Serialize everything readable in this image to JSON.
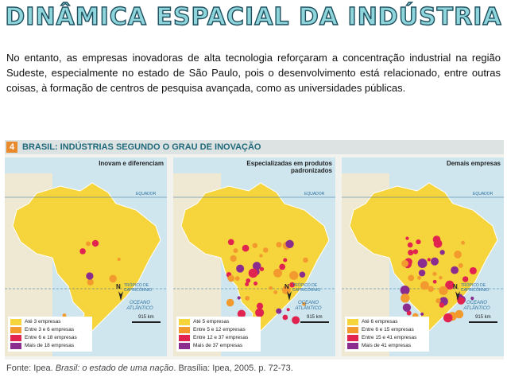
{
  "title": "DINÂMICA ESPACIAL DA INDÚSTRIA",
  "paragraph": "No entanto, as empresas inovadoras de alta tecnologia reforçaram a concentração industrial na região Sudeste, especialmente no estado de São Paulo, pois o desenvolvimento está relacionado, entre outras coisas, à formação de centros de pesquisa avançada, como as universidades públicas.",
  "figure": {
    "number": "4",
    "title": "BRASIL: INDÚSTRIAS SEGUNDO O GRAU DE INOVAÇÃO",
    "equator": "EQUADOR",
    "tropic": "TRÓPICO DE CAPRICÓRNIO",
    "ocean": "OCEANO ATLÂNTICO",
    "north": "N",
    "scale": "915 km",
    "maps": [
      {
        "title": "Inovam e diferenciam",
        "legend": [
          "Até 3 empresas",
          "Entre 3 e 6 empresas",
          "Entre 6 e 18 empresas",
          "Mais de 18 empresas"
        ]
      },
      {
        "title": "Especializadas em produtos padronizados",
        "legend": [
          "Até 5 empresas",
          "Entre 5 e 12 empresas",
          "Entre 12 e 37 empresas",
          "Mais de 37 empresas"
        ]
      },
      {
        "title": "Demais empresas",
        "legend": [
          "Até 6 empresas",
          "Entre 6 e 15 empresas",
          "Entre 15 e 41 empresas",
          "Mais de 41 empresas"
        ]
      }
    ]
  },
  "source": {
    "prefix": "Fonte: Ipea. ",
    "book": "Brasil: o estado de uma nação",
    "suffix": ". Brasília: Ipea, 2005. p. 72-73."
  }
}
